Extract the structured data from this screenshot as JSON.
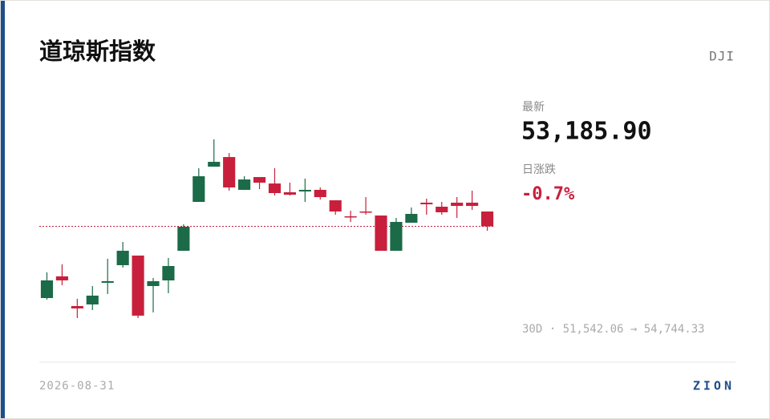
{
  "header": {
    "title": "道琼斯指数",
    "ticker": "DJI"
  },
  "stats": {
    "latest_label": "最新",
    "latest": "53,185.90",
    "change_label": "日涨跌",
    "change": "-0.7%",
    "range": "30D · 51,542.06 → 54,744.33"
  },
  "footer": {
    "date": "2026-08-31",
    "brand": "ZION"
  },
  "chart_data": {
    "type": "candlestick",
    "up_color": "#1b6a48",
    "down_color": "#c8203c",
    "reference_color": "#c8203c",
    "ylim": [
      51542.06,
      54744.33
    ],
    "reference_line": 53185.9,
    "open": [
      51901,
      52289,
      51757,
      51786,
      52174,
      52490,
      52662,
      52116,
      52217,
      52748,
      53624,
      54256,
      54428,
      53840,
      54069,
      53954,
      53797,
      53811,
      53840,
      53653,
      53366,
      53452,
      53380,
      52748,
      53251,
      53610,
      53538,
      53610,
      53610,
      53452
    ],
    "high": [
      52361,
      52504,
      51887,
      52116,
      52605,
      52906,
      52662,
      52260,
      52619,
      53222,
      54227,
      54744.33,
      54500,
      54084,
      54069,
      54227,
      53969,
      54041,
      53883,
      53653,
      53466,
      53710,
      53380,
      53337,
      53524,
      53682,
      53624,
      53710,
      53825,
      53452
    ],
    "low": [
      51872,
      52131,
      51542.06,
      51685,
      51973,
      52447,
      51542.06,
      51643,
      51987,
      52748,
      53624,
      54256,
      53825,
      53840,
      53854,
      53739,
      53739,
      53624,
      53667,
      53395,
      53265,
      53395,
      52748,
      52748,
      53251,
      53395,
      53395,
      53337,
      53481,
      53107
    ],
    "close": [
      52217,
      52217,
      51714,
      51944,
      52203,
      52748,
      51585,
      52203,
      52475,
      53179,
      54084,
      54342,
      53883,
      54026,
      53969,
      53782,
      53753,
      53840,
      53710,
      53452,
      53352,
      53438,
      52748,
      53265,
      53409,
      53581,
      53438,
      53552,
      53552,
      53185.9
    ]
  }
}
